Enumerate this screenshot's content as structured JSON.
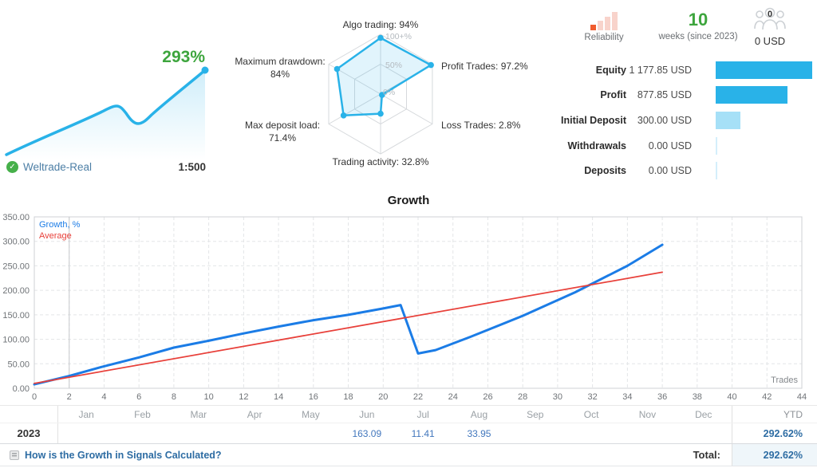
{
  "account": {
    "growth_pct": "293%",
    "name": "Weltrade-Real",
    "leverage": "1:500"
  },
  "radar": {
    "ring_labels": [
      "100+%",
      "50%",
      "0%"
    ],
    "axes": [
      {
        "label": "Algo trading: 94%",
        "value": 94
      },
      {
        "label": "Profit Trades: 97.2%",
        "value": 97.2
      },
      {
        "label": "Loss Trades: 2.8%",
        "value": 2.8
      },
      {
        "label": "Trading activity: 32.8%",
        "value": 32.8
      },
      {
        "label": "Max deposit load:",
        "label2": "71.4%",
        "value": 71.4
      },
      {
        "label": "Maximum drawdown:",
        "label2": "84%",
        "value": 84
      }
    ]
  },
  "header_stats": {
    "reliability_label": "Reliability",
    "weeks_value": "10",
    "weeks_label": "weeks (since 2023)",
    "subscribers_count": "0",
    "funds_value": "0 USD"
  },
  "account_table": {
    "rows": [
      {
        "label": "Equity",
        "value": "1 177.85 USD",
        "bar": 1177.85,
        "style": "solid"
      },
      {
        "label": "Profit",
        "value": "877.85 USD",
        "bar": 877.85,
        "style": "solid"
      },
      {
        "label": "Initial Deposit",
        "value": "300.00 USD",
        "bar": 300,
        "style": "light"
      },
      {
        "label": "Withdrawals",
        "value": "0.00 USD",
        "bar": 0,
        "style": "zero"
      },
      {
        "label": "Deposits",
        "value": "0.00 USD",
        "bar": 0,
        "style": "zero"
      }
    ]
  },
  "chart_data": {
    "type": "line",
    "title": "Growth",
    "xlabel": "Trades",
    "ylabel": "",
    "xlim": [
      0,
      44
    ],
    "ylim": [
      0,
      350
    ],
    "xtick_step": 2,
    "ytick_step": 50,
    "grid": "dashed",
    "marker_x": 2,
    "legend": [
      "Growth, %",
      "Average"
    ],
    "legend_position": "top-left",
    "series": [
      {
        "name": "Growth, %",
        "color": "#1b7ce6",
        "stroke_width": 3,
        "x": [
          0,
          2,
          4,
          6,
          8,
          10,
          12,
          14,
          16,
          18,
          20,
          21,
          22,
          23,
          25,
          28,
          31,
          34,
          36
        ],
        "values": [
          8,
          25,
          45,
          63,
          83,
          97,
          112,
          126,
          139,
          150,
          163,
          170,
          71,
          78,
          105,
          148,
          196,
          250,
          293
        ]
      },
      {
        "name": "Average",
        "color": "#e8403a",
        "stroke_width": 1.75,
        "x": [
          0,
          36
        ],
        "values": [
          10,
          237
        ]
      }
    ]
  },
  "growth_table": {
    "year": "2023",
    "months": [
      {
        "label": "Jan",
        "value": ""
      },
      {
        "label": "Feb",
        "value": ""
      },
      {
        "label": "Mar",
        "value": ""
      },
      {
        "label": "Apr",
        "value": ""
      },
      {
        "label": "May",
        "value": ""
      },
      {
        "label": "Jun",
        "value": "163.09"
      },
      {
        "label": "Jul",
        "value": "11.41"
      },
      {
        "label": "Aug",
        "value": "33.95"
      },
      {
        "label": "Sep",
        "value": ""
      },
      {
        "label": "Oct",
        "value": ""
      },
      {
        "label": "Nov",
        "value": ""
      },
      {
        "label": "Dec",
        "value": ""
      }
    ],
    "ytd_label": "YTD",
    "ytd_value": "292.62%",
    "total_label": "Total:",
    "total_value": "292.62%"
  },
  "footer": {
    "help_link": "How is the Growth in Signals Calculated?"
  },
  "colors": {
    "accent_blue": "#29b2e8",
    "light_blue_bar": "#a6e0f7",
    "growth_line": "#1b7ce6",
    "average_line": "#e8403a",
    "green": "#3da53d",
    "link_blue": "#2d6ca3",
    "month_value_blue": "#4277bd",
    "reliability_active": "#f05b2d",
    "reliability_inactive": "#f8d3cb"
  }
}
